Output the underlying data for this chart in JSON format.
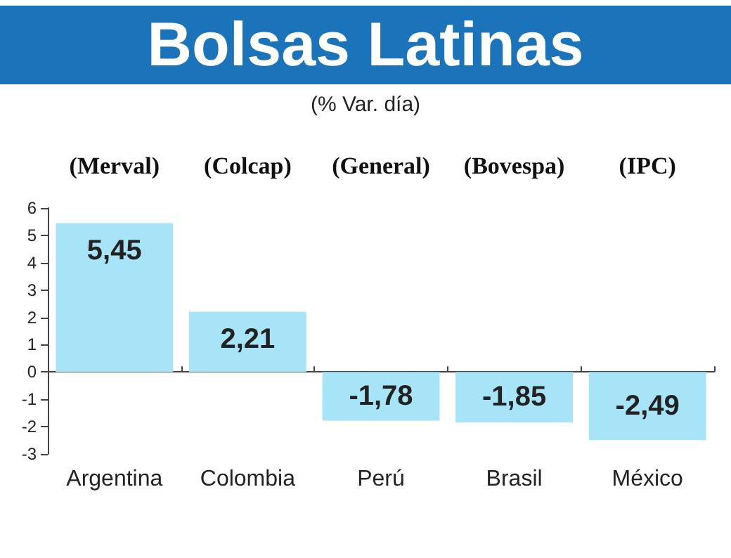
{
  "chart_data": {
    "type": "bar",
    "title": "Bolsas Latinas",
    "subtitle": "(% Var. día)",
    "categories": [
      "Argentina",
      "Colombia",
      "Perú",
      "Brasil",
      "México"
    ],
    "values": [
      5.45,
      2.21,
      -1.78,
      -1.85,
      -2.49
    ],
    "value_labels": [
      "5,45",
      "2,21",
      "-1,78",
      "-1,85",
      "-2,49"
    ],
    "color": "#a8e4f7",
    "ylim": [
      -3,
      6
    ],
    "yticks": [
      -3,
      -2,
      -1,
      0,
      1,
      2,
      3,
      4,
      5,
      6
    ],
    "annotations": [
      "(Merval)",
      "(Colcap)",
      "(General)",
      "(Bovespa)",
      "(IPC)"
    ]
  }
}
